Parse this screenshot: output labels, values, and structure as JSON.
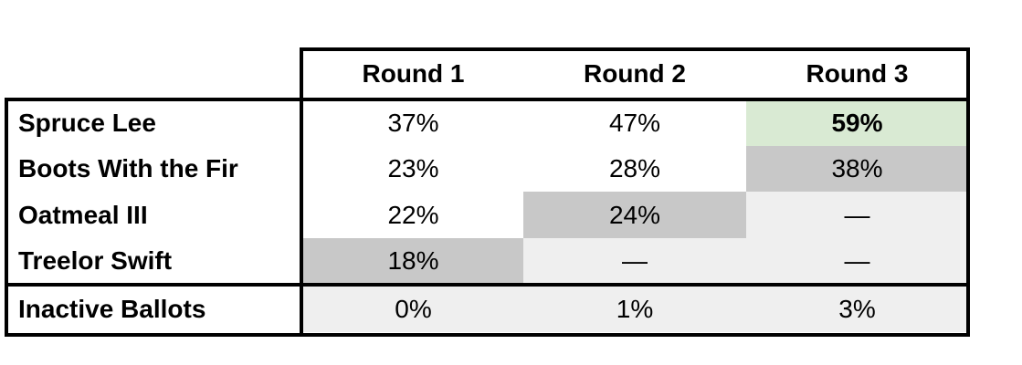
{
  "table": {
    "header": [
      "Round 1",
      "Round 2",
      "Round 3"
    ],
    "rows": [
      {
        "name": "Spruce Lee",
        "cells": [
          "37%",
          "47%",
          "59%"
        ]
      },
      {
        "name": "Boots With the Fir",
        "cells": [
          "23%",
          "28%",
          "38%"
        ]
      },
      {
        "name": "Oatmeal III",
        "cells": [
          "22%",
          "24%",
          "—"
        ]
      },
      {
        "name": "Treelor Swift",
        "cells": [
          "18%",
          "—",
          "—"
        ]
      }
    ],
    "footer": {
      "name": "Inactive Ballots",
      "cells": [
        "0%",
        "1%",
        "3%"
      ]
    }
  }
}
